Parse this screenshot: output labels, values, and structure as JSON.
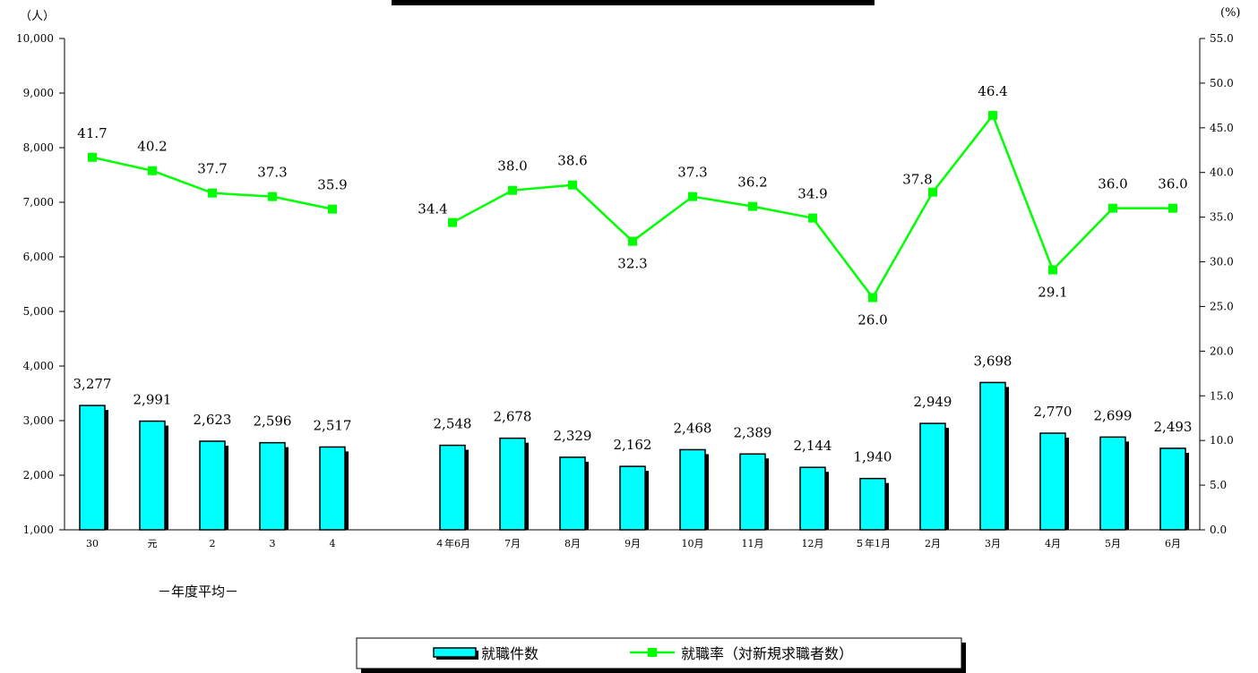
{
  "chart_data": {
    "type": "bar",
    "y_left_unit": "（人）",
    "y_right_unit": "(%)",
    "y_left_range": [
      1000,
      10000
    ],
    "y_left_ticks": [
      "1,000",
      "2,000",
      "3,000",
      "4,000",
      "5,000",
      "6,000",
      "7,000",
      "8,000",
      "9,000",
      "10,000"
    ],
    "y_right_range": [
      0,
      55
    ],
    "y_right_ticks": [
      "0.0",
      "5.0",
      "10.0",
      "15.0",
      "20.0",
      "25.0",
      "30.0",
      "35.0",
      "40.0",
      "45.0",
      "50.0",
      "55.0"
    ],
    "group_label": "－年度平均－",
    "categories": [
      {
        "label": "30",
        "group": 0
      },
      {
        "label": "元",
        "group": 0
      },
      {
        "label": "2",
        "group": 0
      },
      {
        "label": "3",
        "group": 0
      },
      {
        "label": "4",
        "group": 0
      },
      {
        "label": "４年6月",
        "group": 1
      },
      {
        "label": "7月",
        "group": 1
      },
      {
        "label": "8月",
        "group": 1
      },
      {
        "label": "9月",
        "group": 1
      },
      {
        "label": "10月",
        "group": 1
      },
      {
        "label": "11月",
        "group": 1
      },
      {
        "label": "12月",
        "group": 1
      },
      {
        "label": "５年1月",
        "group": 1
      },
      {
        "label": "2月",
        "group": 1
      },
      {
        "label": "3月",
        "group": 1
      },
      {
        "label": "4月",
        "group": 1
      },
      {
        "label": "5月",
        "group": 1
      },
      {
        "label": "6月",
        "group": 1
      }
    ],
    "series": [
      {
        "name": "就職件数",
        "type": "bar",
        "axis": "left",
        "color": "#00ffff",
        "values": [
          3277,
          2991,
          2623,
          2596,
          2517,
          2548,
          2678,
          2329,
          2162,
          2468,
          2389,
          2144,
          1940,
          2949,
          3698,
          2770,
          2699,
          2493
        ],
        "labels": [
          "3,277",
          "2,991",
          "2,623",
          "2,596",
          "2,517",
          "2,548",
          "2,678",
          "2,329",
          "2,162",
          "2,468",
          "2,389",
          "2,144",
          "1,940",
          "2,949",
          "3,698",
          "2,770",
          "2,699",
          "2,493"
        ]
      },
      {
        "name": "就職率（対新規求職者数）",
        "type": "line",
        "axis": "right",
        "color": "#00ff00",
        "values": [
          41.7,
          40.2,
          37.7,
          37.3,
          35.9,
          34.4,
          38.0,
          38.6,
          32.3,
          37.3,
          36.2,
          34.9,
          26.0,
          37.8,
          46.4,
          29.1,
          36.0,
          36.0
        ],
        "labels": [
          "41.7",
          "40.2",
          "37.7",
          "37.3",
          "35.9",
          "34.4",
          "38.0",
          "38.6",
          "32.3",
          "37.3",
          "36.2",
          "34.9",
          "26.0",
          "37.8",
          "46.4",
          "29.1",
          "36.0",
          "36.0"
        ]
      }
    ],
    "legend_position": "bottom"
  }
}
